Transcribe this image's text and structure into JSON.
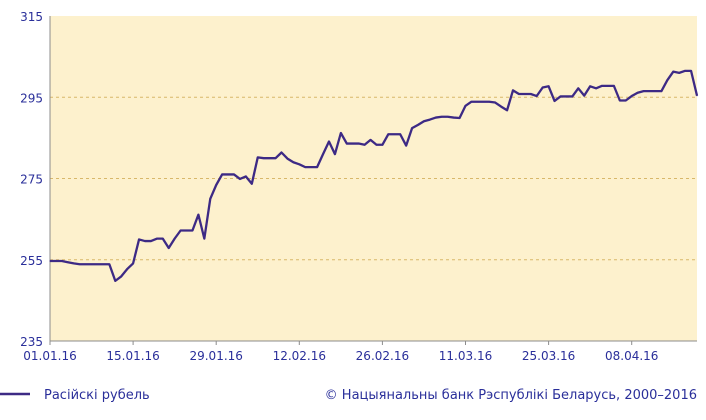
{
  "chart_data": {
    "type": "line",
    "ylim": [
      235,
      315
    ],
    "yticks": [
      "235",
      "255",
      "275",
      "295",
      "315"
    ],
    "xticks": [
      "01.01.16",
      "15.01.16",
      "29.01.16",
      "12.02.16",
      "26.02.16",
      "11.03.16",
      "25.03.16",
      "08.04.16"
    ],
    "grid": "horizontal-dashed",
    "series": [
      {
        "name": "Расійскі рубель",
        "x": [
          "01.01.16",
          "02.01.16",
          "03.01.16",
          "04.01.16",
          "05.01.16",
          "06.01.16",
          "07.01.16",
          "08.01.16",
          "09.01.16",
          "10.01.16",
          "11.01.16",
          "12.01.16",
          "13.01.16",
          "14.01.16",
          "15.01.16",
          "16.01.16",
          "17.01.16",
          "18.01.16",
          "19.01.16",
          "20.01.16",
          "21.01.16",
          "22.01.16",
          "23.01.16",
          "24.01.16",
          "25.01.16",
          "26.01.16",
          "27.01.16",
          "28.01.16",
          "29.01.16",
          "30.01.16",
          "31.01.16",
          "01.02.16",
          "02.02.16",
          "03.02.16",
          "04.02.16",
          "05.02.16",
          "06.02.16",
          "07.02.16",
          "08.02.16",
          "09.02.16",
          "10.02.16",
          "11.02.16",
          "12.02.16",
          "13.02.16",
          "14.02.16",
          "15.02.16",
          "16.02.16",
          "17.02.16",
          "18.02.16",
          "19.02.16",
          "20.02.16",
          "21.02.16",
          "22.02.16",
          "23.02.16",
          "24.02.16",
          "25.02.16",
          "26.02.16",
          "27.02.16",
          "28.02.16",
          "29.02.16",
          "01.03.16",
          "02.03.16",
          "03.03.16",
          "04.03.16",
          "05.03.16",
          "06.03.16",
          "07.03.16",
          "08.03.16",
          "09.03.16",
          "10.03.16",
          "11.03.16",
          "12.03.16",
          "13.03.16",
          "14.03.16",
          "15.03.16",
          "16.03.16",
          "17.03.16",
          "18.03.16",
          "19.03.16",
          "20.03.16",
          "21.03.16",
          "22.03.16",
          "23.03.16",
          "24.03.16",
          "25.03.16",
          "26.03.16",
          "27.03.16",
          "28.03.16",
          "29.03.16",
          "30.03.16",
          "31.03.16",
          "01.04.16",
          "02.04.16",
          "03.04.16",
          "04.04.16",
          "05.04.16",
          "06.04.16",
          "07.04.16",
          "08.04.16",
          "09.04.16",
          "10.04.16",
          "11.04.16",
          "12.04.16",
          "13.04.16",
          "14.04.16",
          "15.04.16",
          "16.04.16",
          "17.04.16",
          "18.04.16",
          "19.04.16"
        ],
        "values": [
          254.7,
          254.7,
          254.7,
          254.4,
          254.1,
          253.9,
          253.9,
          253.9,
          253.9,
          253.9,
          253.9,
          249.8,
          250.9,
          252.7,
          254.1,
          260.0,
          259.6,
          259.6,
          260.2,
          260.2,
          257.9,
          260.2,
          262.2,
          262.2,
          262.2,
          266.1,
          260.2,
          270.0,
          273.4,
          276.0,
          276.0,
          276.0,
          274.9,
          275.5,
          273.7,
          280.2,
          280.0,
          280.0,
          280.0,
          281.4,
          279.9,
          279.0,
          278.5,
          277.8,
          277.8,
          277.8,
          281.0,
          284.1,
          281.0,
          286.2,
          283.6,
          283.6,
          283.6,
          283.3,
          284.5,
          283.3,
          283.3,
          285.9,
          285.9,
          285.9,
          283.1,
          287.4,
          288.2,
          289.1,
          289.5,
          290.0,
          290.2,
          290.2,
          290.0,
          289.9,
          292.9,
          293.9,
          293.9,
          293.9,
          293.9,
          293.7,
          292.7,
          291.8,
          296.7,
          295.8,
          295.8,
          295.8,
          295.3,
          297.4,
          297.7,
          294.1,
          295.2,
          295.2,
          295.2,
          297.2,
          295.4,
          297.7,
          297.2,
          297.8,
          297.8,
          297.8,
          294.2,
          294.2,
          295.3,
          296.1,
          296.5,
          296.5,
          296.5,
          296.5,
          299.2,
          301.3,
          301.0,
          301.5,
          301.5,
          295.4
        ]
      }
    ],
    "legend": {
      "label": "Расійскі рубель",
      "placement": "bottom-left"
    },
    "copyright": "© Нацыянальны банк Рэспублікі Беларусь, 2000–2016",
    "colors": {
      "line": "#3d2a85",
      "plot_bg": "#fdf1cd",
      "grid": "#d8b86a",
      "text": "#2a2f9a",
      "axis": "#8c8c8c"
    }
  }
}
